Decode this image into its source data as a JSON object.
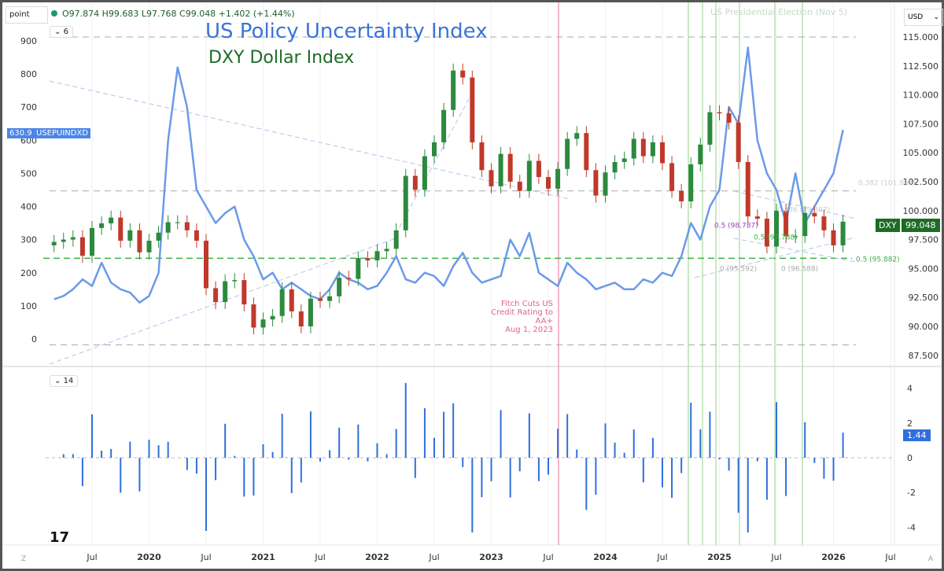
{
  "toolbar": {
    "symbol_field": "point",
    "ohlc": "O97.874 H99.683 L97.768 C99.048 +1.402 (+1.44%)",
    "main_collapse": "6",
    "lower_collapse": "14",
    "currency": "USD"
  },
  "titles": {
    "line1": "US Policy Uncertainty Index",
    "line2": "DXY Dollar Index"
  },
  "colors": {
    "epu": "#6b9ae8",
    "up": "#2b8a3e",
    "down": "#c0392b",
    "hist": "#2f6fdc",
    "fib_green": "#3cb043",
    "fitch": "#e06090",
    "election": "#b8e0b0"
  },
  "annotations": {
    "election": "US Presidential Election (Nov 5)",
    "fitch": [
      "Fitch Cuts US",
      "Credit Rating to AA+",
      "Aug 1, 2023"
    ],
    "fib_labels": [
      "0.5 (98.787)",
      "0.5 (95.882)",
      "0 (95.592)",
      "0 (96.588)",
      "0.382 (101.997)",
      "0.236 (99.397)",
      "0.5 (97.788)"
    ]
  },
  "badges": {
    "epu_value": "630.9",
    "epu_name": "USEPUINDXD",
    "dxy_name": "DXY",
    "dxy_value": "99.048",
    "change_value": "1.44"
  },
  "x_axis": {
    "labels": [
      "Jul",
      "2020",
      "Jul",
      "2021",
      "Jul",
      "2022",
      "Jul",
      "2023",
      "Jul",
      "2024",
      "Jul",
      "2025",
      "Jul",
      "2026",
      "Jul"
    ],
    "left_btn": "Z",
    "right_btn": "A"
  },
  "chart_data": [
    {
      "type": "candlestick+line",
      "xlabel": "",
      "start": "2019-03",
      "left_axis": {
        "ticks": [
          "900",
          "800",
          "700",
          "600",
          "500",
          "400",
          "300",
          "200",
          "100",
          "0"
        ],
        "range": [
          0,
          900
        ]
      },
      "right_axis": {
        "ticks": [
          "115.000",
          "112.500",
          "110.000",
          "107.500",
          "105.000",
          "102.500",
          "100.000",
          "97.500",
          "95.000",
          "92.500",
          "90.000",
          "87.500"
        ],
        "range": [
          87.5,
          115
        ]
      },
      "dxy_monthly_close": [
        97.3,
        97.5,
        97.7,
        96.1,
        98.5,
        98.9,
        99.4,
        97.4,
        98.3,
        96.4,
        97.4,
        98.1,
        99.0,
        99.0,
        98.3,
        97.4,
        93.3,
        92.1,
        93.9,
        94.0,
        91.9,
        89.9,
        90.6,
        90.9,
        93.2,
        91.3,
        90.0,
        92.4,
        92.2,
        92.6,
        94.2,
        94.1,
        95.9,
        95.7,
        96.5,
        96.7,
        98.3,
        103.0,
        101.8,
        104.7,
        105.9,
        108.7,
        112.1,
        111.5,
        105.9,
        103.5,
        102.1,
        104.9,
        102.5,
        101.7,
        104.3,
        102.9,
        101.9,
        103.6,
        106.2,
        106.7,
        103.5,
        101.3,
        103.3,
        104.2,
        104.5,
        106.2,
        104.7,
        105.9,
        104.1,
        101.7,
        100.8,
        104.0,
        105.7,
        108.5,
        108.4,
        107.6,
        104.2,
        99.5,
        99.3,
        96.9,
        100.0,
        97.8,
        97.8,
        99.8,
        99.5,
        98.3,
        97.0,
        99.048
      ],
      "epu_monthly": [
        120,
        130,
        150,
        180,
        160,
        230,
        170,
        150,
        140,
        110,
        130,
        200,
        600,
        820,
        700,
        450,
        400,
        350,
        380,
        400,
        300,
        250,
        180,
        200,
        150,
        170,
        150,
        130,
        120,
        150,
        200,
        180,
        170,
        150,
        160,
        200,
        250,
        180,
        170,
        200,
        190,
        160,
        220,
        260,
        200,
        170,
        180,
        190,
        300,
        250,
        320,
        200,
        180,
        160,
        230,
        200,
        180,
        150,
        160,
        170,
        150,
        150,
        180,
        170,
        200,
        190,
        250,
        350,
        300,
        400,
        450,
        700,
        650,
        880,
        600,
        500,
        450,
        350,
        500,
        350,
        400,
        450,
        500,
        630.9
      ],
      "horizontal_levels": {
        "gray_dashed": [
          115,
          101.7,
          88.4
        ],
        "green_dashed": [
          95.882
        ]
      }
    },
    {
      "type": "bar",
      "name": "",
      "y_axis": {
        "ticks": [
          "4",
          "2",
          "0",
          "-2",
          "-4"
        ],
        "range": [
          -4.5,
          4.5
        ]
      },
      "last_value": 1.44
    }
  ]
}
